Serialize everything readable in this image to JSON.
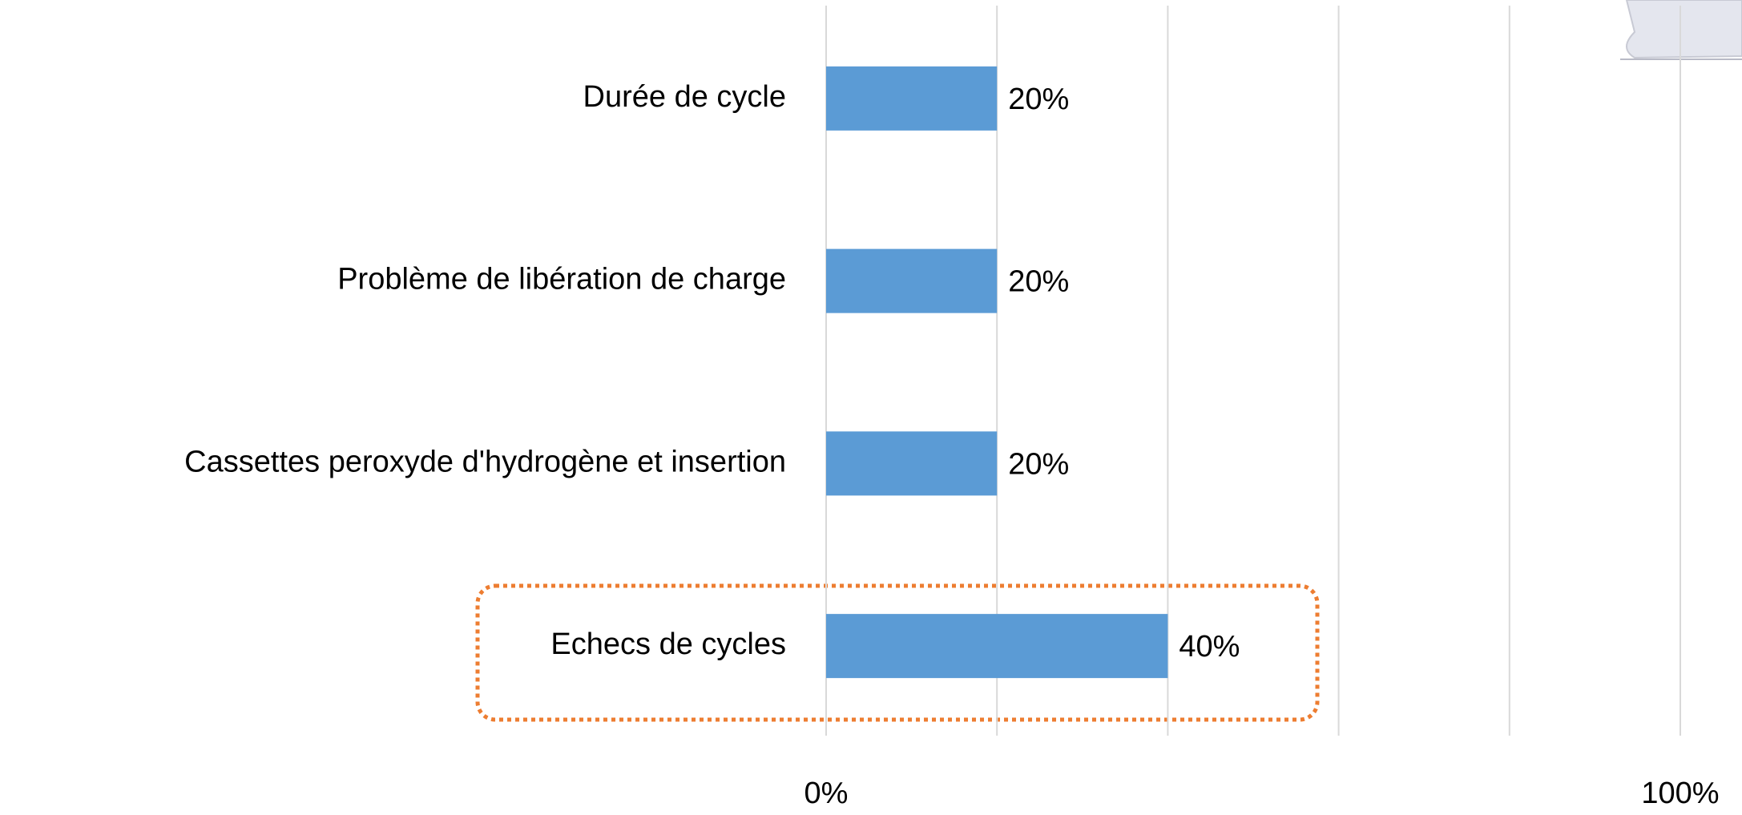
{
  "chart_data": {
    "type": "bar",
    "orientation": "horizontal",
    "categories": [
      "Durée de cycle",
      "Problème de libération de charge",
      "Cassettes peroxyde d'hydrogène et insertion",
      "Echecs de cycles"
    ],
    "values": [
      20,
      20,
      20,
      40
    ],
    "value_labels": [
      "20%",
      "20%",
      "20%",
      "40%"
    ],
    "color": "#5b9bd5",
    "xlim": [
      0,
      100
    ],
    "xticks": [
      {
        "value": 0,
        "label": "0%"
      },
      {
        "value": 20,
        "label": null
      },
      {
        "value": 40,
        "label": null
      },
      {
        "value": 60,
        "label": null
      },
      {
        "value": 80,
        "label": null
      },
      {
        "value": 100,
        "label": "100%"
      }
    ],
    "grid": true
  }
}
